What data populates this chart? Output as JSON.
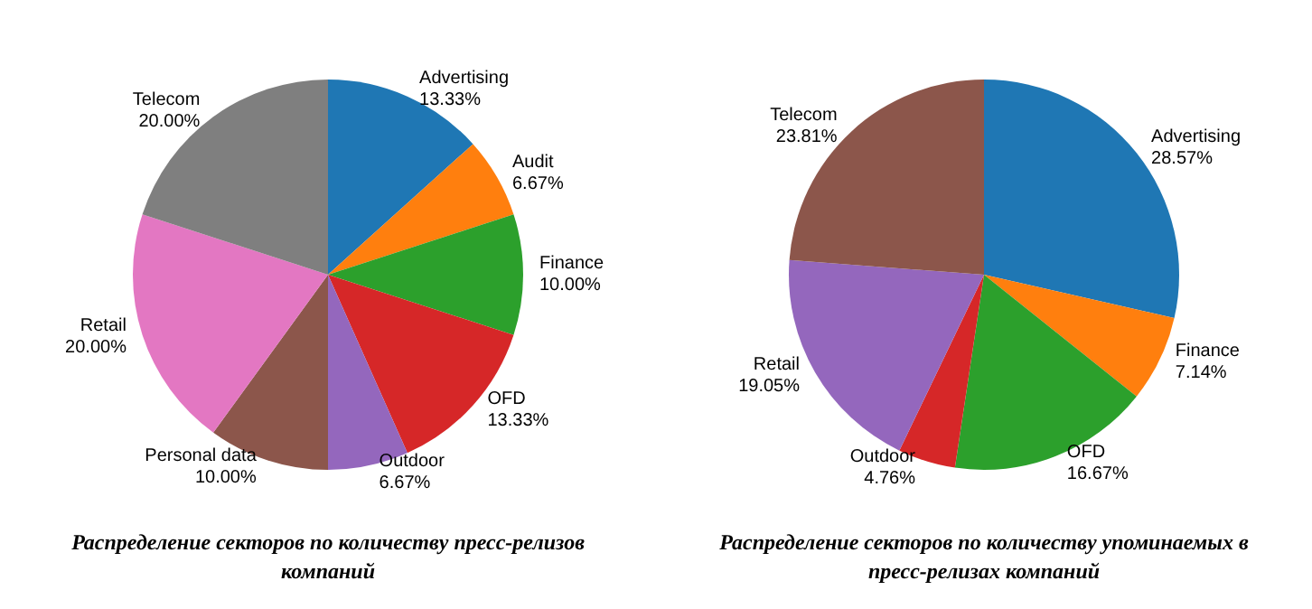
{
  "chart_data": [
    {
      "type": "pie",
      "title": "Распределение секторов по количеству пресс-релизов компаний",
      "categories": [
        "Advertising",
        "Audit",
        "Finance",
        "OFD",
        "Outdoor",
        "Personal data",
        "Retail",
        "Telecom"
      ],
      "values": [
        13.33,
        6.67,
        10.0,
        13.33,
        6.67,
        10.0,
        20.0,
        20.0
      ],
      "value_labels": [
        "13.33%",
        "6.67%",
        "10.00%",
        "13.33%",
        "6.67%",
        "10.00%",
        "20.00%",
        "20.00%"
      ],
      "colors": [
        "#1f77b4",
        "#ff7f0e",
        "#2ca02c",
        "#d62728",
        "#9467bd",
        "#8c564b",
        "#e377c2",
        "#7f7f7f"
      ]
    },
    {
      "type": "pie",
      "title": "Распределение секторов по количеству упоминаемых в пресс-релизах компаний",
      "categories": [
        "Advertising",
        "Finance",
        "OFD",
        "Outdoor",
        "Retail",
        "Telecom"
      ],
      "values": [
        28.57,
        7.14,
        16.67,
        4.76,
        19.05,
        23.81
      ],
      "value_labels": [
        "28.57%",
        "7.14%",
        "16.67%",
        "4.76%",
        "19.05%",
        "23.81%"
      ],
      "colors": [
        "#1f77b4",
        "#ff7f0e",
        "#2ca02c",
        "#d62728",
        "#9467bd",
        "#8c564b"
      ]
    }
  ]
}
